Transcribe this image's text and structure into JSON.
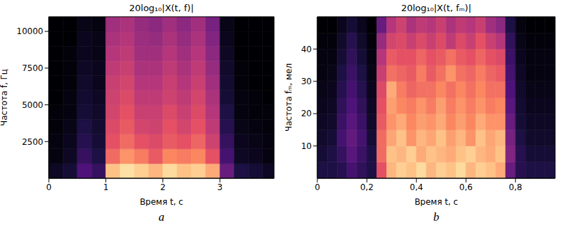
{
  "chart_data": [
    {
      "type": "heatmap",
      "panel_label": "a",
      "title": "20log₁₀|X(t, f)|",
      "x_label": "Время t, с",
      "y_label": "Частота f, Гц",
      "xlim": [
        0,
        3.95
      ],
      "xticks": [
        0,
        1,
        2,
        3
      ],
      "ylim": [
        0,
        11000
      ],
      "yticks": [
        2500,
        5000,
        7500,
        10000
      ],
      "x_edges": [
        0,
        0.25,
        0.5,
        0.75,
        1,
        1.25,
        1.5,
        1.75,
        2,
        2.25,
        2.5,
        2.75,
        3,
        3.25,
        3.5,
        3.75,
        4
      ],
      "y_edges": [
        0,
        1000,
        2000,
        3000,
        4000,
        5000,
        6000,
        7000,
        8000,
        9000,
        10000,
        11000
      ],
      "zlim": [
        -80,
        0
      ],
      "z": [
        [
          -75,
          -72,
          -60,
          -65,
          -10,
          -5,
          -8,
          -12,
          -6,
          -10,
          -8,
          -14,
          -55,
          -70,
          -72,
          -75
        ],
        [
          -78,
          -75,
          -65,
          -70,
          -25,
          -18,
          -22,
          -28,
          -20,
          -22,
          -20,
          -30,
          -62,
          -75,
          -76,
          -78
        ],
        [
          -78,
          -76,
          -68,
          -72,
          -30,
          -25,
          -30,
          -32,
          -28,
          -30,
          -26,
          -35,
          -65,
          -76,
          -77,
          -78
        ],
        [
          -79,
          -77,
          -70,
          -73,
          -32,
          -28,
          -34,
          -35,
          -30,
          -34,
          -30,
          -38,
          -68,
          -77,
          -78,
          -79
        ],
        [
          -79,
          -78,
          -72,
          -74,
          -34,
          -30,
          -36,
          -36,
          -32,
          -36,
          -32,
          -40,
          -70,
          -78,
          -79,
          -79
        ],
        [
          -80,
          -78,
          -73,
          -75,
          -35,
          -32,
          -38,
          -38,
          -35,
          -38,
          -34,
          -42,
          -72,
          -78,
          -79,
          -80
        ],
        [
          -80,
          -79,
          -74,
          -76,
          -36,
          -34,
          -40,
          -40,
          -36,
          -40,
          -36,
          -44,
          -73,
          -79,
          -80,
          -80
        ],
        [
          -80,
          -79,
          -75,
          -76,
          -38,
          -36,
          -42,
          -42,
          -38,
          -42,
          -38,
          -46,
          -74,
          -79,
          -80,
          -80
        ],
        [
          -80,
          -79,
          -76,
          -77,
          -40,
          -38,
          -44,
          -44,
          -40,
          -44,
          -40,
          -48,
          -75,
          -80,
          -80,
          -80
        ],
        [
          -80,
          -80,
          -76,
          -77,
          -42,
          -40,
          -45,
          -46,
          -42,
          -46,
          -42,
          -50,
          -76,
          -80,
          -80,
          -80
        ],
        [
          -80,
          -80,
          -77,
          -78,
          -44,
          -42,
          -46,
          -48,
          -44,
          -48,
          -44,
          -52,
          -77,
          -80,
          -80,
          -80
        ]
      ]
    },
    {
      "type": "heatmap",
      "panel_label": "b",
      "title": "20log₁₀|X(t, fₘ)|",
      "x_label": "Время t, с",
      "y_label": "Частота fₘ, мел",
      "xlim": [
        0,
        0.96
      ],
      "xticks": [
        0,
        {
          "value": 0.2,
          "label": "0,2"
        },
        {
          "value": 0.4,
          "label": "0,4"
        },
        {
          "value": 0.6,
          "label": "0,6"
        },
        {
          "value": 0.8,
          "label": "0,8"
        }
      ],
      "ylim": [
        0,
        50
      ],
      "yticks": [
        10,
        20,
        30,
        40
      ],
      "x_edges": [
        0,
        0.04,
        0.08,
        0.12,
        0.16,
        0.2,
        0.24,
        0.28,
        0.32,
        0.36,
        0.4,
        0.44,
        0.48,
        0.52,
        0.56,
        0.6,
        0.64,
        0.68,
        0.72,
        0.76,
        0.8,
        0.84,
        0.88,
        0.92,
        0.96
      ],
      "y_edges": [
        0,
        5,
        10,
        15,
        20,
        25,
        30,
        35,
        40,
        45,
        50
      ],
      "zlim": [
        -80,
        0
      ],
      "z": [
        [
          -70,
          -70,
          -68,
          -62,
          -66,
          -70,
          -30,
          -12,
          -8,
          -10,
          -6,
          -12,
          -8,
          -10,
          -6,
          -12,
          -8,
          -10,
          -14,
          -55,
          -68,
          -70,
          -70,
          -70
        ],
        [
          -72,
          -70,
          -65,
          -58,
          -64,
          -70,
          -25,
          -10,
          -12,
          -8,
          -14,
          -10,
          -12,
          -14,
          -10,
          -8,
          -12,
          -14,
          -10,
          -50,
          -68,
          -72,
          -72,
          -72
        ],
        [
          -74,
          -72,
          -62,
          -56,
          -62,
          -72,
          -25,
          -15,
          -10,
          -18,
          -12,
          -15,
          -10,
          -16,
          -12,
          -18,
          -10,
          -15,
          -12,
          -52,
          -70,
          -74,
          -74,
          -74
        ],
        [
          -75,
          -74,
          -64,
          -58,
          -64,
          -74,
          -28,
          -18,
          -14,
          -20,
          -16,
          -18,
          -14,
          -20,
          -16,
          -20,
          -14,
          -18,
          -18,
          -55,
          -72,
          -75,
          -75,
          -75
        ],
        [
          -76,
          -75,
          -66,
          -60,
          -66,
          -75,
          -30,
          -16,
          -20,
          -22,
          -18,
          -22,
          -16,
          -22,
          -18,
          -22,
          -18,
          -22,
          -20,
          -58,
          -73,
          -76,
          -76,
          -76
        ],
        [
          -77,
          -76,
          -68,
          -62,
          -68,
          -76,
          -32,
          -14,
          -22,
          -26,
          -24,
          -24,
          -20,
          -24,
          -20,
          -24,
          -20,
          -24,
          -24,
          -60,
          -74,
          -77,
          -77,
          -77
        ],
        [
          -78,
          -77,
          -70,
          -64,
          -70,
          -77,
          -36,
          -24,
          -26,
          -28,
          -22,
          -28,
          -24,
          -18,
          -24,
          -26,
          -22,
          -26,
          -28,
          -62,
          -75,
          -78,
          -78,
          -78
        ],
        [
          -78,
          -78,
          -72,
          -66,
          -72,
          -78,
          -40,
          -28,
          -30,
          -30,
          -26,
          -30,
          -28,
          -24,
          -28,
          -30,
          -26,
          -30,
          -32,
          -64,
          -76,
          -78,
          -78,
          -78
        ],
        [
          -79,
          -79,
          -74,
          -68,
          -74,
          -79,
          -46,
          -34,
          -32,
          -36,
          -32,
          -36,
          -32,
          -38,
          -32,
          -36,
          -30,
          -36,
          -40,
          -66,
          -77,
          -79,
          -79,
          -79
        ],
        [
          -80,
          -80,
          -76,
          -72,
          -76,
          -80,
          -55,
          -40,
          -35,
          -42,
          -38,
          -40,
          -36,
          -42,
          -38,
          -40,
          -36,
          -44,
          -48,
          -70,
          -78,
          -80,
          -80,
          -80
        ]
      ]
    }
  ]
}
